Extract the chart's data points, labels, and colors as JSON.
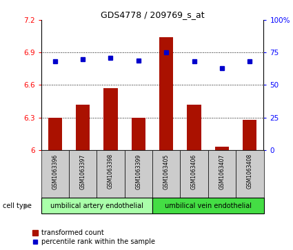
{
  "title": "GDS4778 / 209769_s_at",
  "samples": [
    "GSM1063396",
    "GSM1063397",
    "GSM1063398",
    "GSM1063399",
    "GSM1063405",
    "GSM1063406",
    "GSM1063407",
    "GSM1063408"
  ],
  "transformed_count": [
    6.3,
    6.42,
    6.57,
    6.3,
    7.04,
    6.42,
    6.03,
    6.28
  ],
  "percentile_rank": [
    68,
    70,
    71,
    69,
    75,
    68,
    63,
    68
  ],
  "ylim_left": [
    6.0,
    7.2
  ],
  "ylim_right": [
    0,
    100
  ],
  "yticks_left": [
    6.0,
    6.3,
    6.6,
    6.9,
    7.2
  ],
  "yticks_right": [
    0,
    25,
    50,
    75,
    100
  ],
  "ytick_labels_left": [
    "6",
    "6.3",
    "6.6",
    "6.9",
    "7.2"
  ],
  "ytick_labels_right": [
    "0",
    "25",
    "50",
    "75",
    "100%"
  ],
  "bar_color": "#aa1100",
  "dot_color": "#0000cc",
  "cell_groups": [
    {
      "label": "umbilical artery endothelial",
      "start": 0,
      "end": 4,
      "color": "#aaffaa"
    },
    {
      "label": "umbilical vein endothelial",
      "start": 4,
      "end": 8,
      "color": "#44dd44"
    }
  ],
  "cell_type_label": "cell type",
  "legend_bar_label": "transformed count",
  "legend_dot_label": "percentile rank within the sample",
  "bar_width": 0.5,
  "sample_box_color": "#cccccc"
}
